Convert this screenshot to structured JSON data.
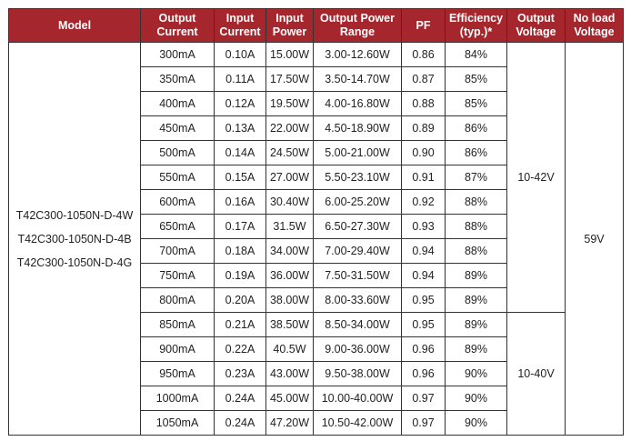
{
  "headers": [
    "Model",
    "Output Current",
    "Input Current",
    "Input Power",
    "Output Power Range",
    "PF",
    "Efficiency (typ.)*",
    "Output Voltage",
    "No load Voltage"
  ],
  "models": [
    "T42C300-1050N-D-4W",
    "T42C300-1050N-D-4B",
    "T42C300-1050N-D-4G"
  ],
  "rows": [
    [
      "300mA",
      "0.10A",
      "15.00W",
      "3.00-12.60W",
      "0.86",
      "84%"
    ],
    [
      "350mA",
      "0.11A",
      "17.50W",
      "3.50-14.70W",
      "0.87",
      "85%"
    ],
    [
      "400mA",
      "0.12A",
      "19.50W",
      "4.00-16.80W",
      "0.88",
      "85%"
    ],
    [
      "450mA",
      "0.13A",
      "22.00W",
      "4.50-18.90W",
      "0.89",
      "86%"
    ],
    [
      "500mA",
      "0.14A",
      "24.50W",
      "5.00-21.00W",
      "0.90",
      "86%"
    ],
    [
      "550mA",
      "0.15A",
      "27.00W",
      "5.50-23.10W",
      "0.91",
      "87%"
    ],
    [
      "600mA",
      "0.16A",
      "30.40W",
      "6.00-25.20W",
      "0.92",
      "88%"
    ],
    [
      "650mA",
      "0.17A",
      "31.5W",
      "6.50-27.30W",
      "0.93",
      "88%"
    ],
    [
      "700mA",
      "0.18A",
      "34.00W",
      "7.00-29.40W",
      "0.94",
      "88%"
    ],
    [
      "750mA",
      "0.19A",
      "36.00W",
      "7.50-31.50W",
      "0.94",
      "89%"
    ],
    [
      "800mA",
      "0.20A",
      "38.00W",
      "8.00-33.60W",
      "0.95",
      "89%"
    ],
    [
      "850mA",
      "0.21A",
      "38.50W",
      "8.50-34.00W",
      "0.95",
      "89%"
    ],
    [
      "900mA",
      "0.22A",
      "40.5W",
      "9.00-36.00W",
      "0.96",
      "89%"
    ],
    [
      "950mA",
      "0.23A",
      "43.00W",
      "9.50-38.00W",
      "0.96",
      "90%"
    ],
    [
      "1000mA",
      "0.24A",
      "45.00W",
      "10.00-40.00W",
      "0.97",
      "90%"
    ],
    [
      "1050mA",
      "0.24A",
      "47.20W",
      "10.50-42.00W",
      "0.97",
      "90%"
    ]
  ],
  "output_voltage": [
    "10-42V",
    "10-40V"
  ],
  "no_load_voltage": "59V",
  "colors": {
    "header_bg": "#a6262d",
    "header_text": "#ffffff",
    "border": "#333333"
  }
}
